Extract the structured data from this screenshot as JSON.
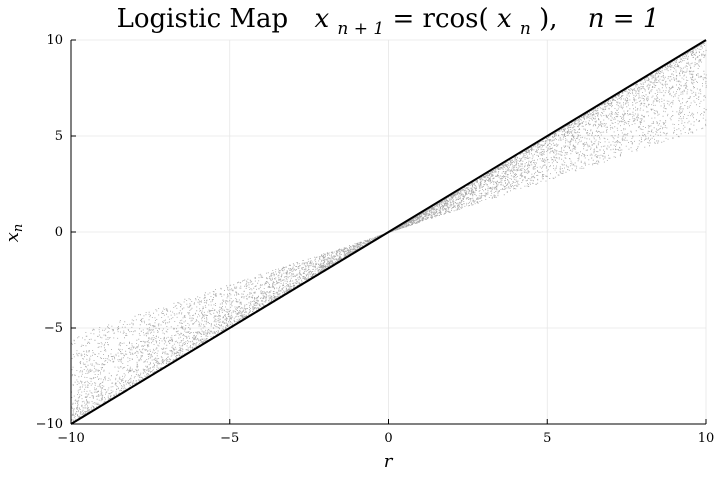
{
  "chart_data": {
    "type": "scatter",
    "title": "Logistic Map   x_{n+1} = rcos(x_n),   n = 1",
    "title_parts": {
      "lead": "Logistic Map",
      "x": "x",
      "sub_n1": "n + 1",
      "eq": " = rcos(",
      "x2": "x",
      "sub_n": "n",
      "close": "),",
      "n_eq": "n = 1"
    },
    "xlabel": "r",
    "ylabel_main": "x",
    "ylabel_sub": "n",
    "xlim": [
      -10,
      10
    ],
    "ylim": [
      -10,
      10
    ],
    "x_ticks": [
      -10,
      -5,
      0,
      5,
      10
    ],
    "x_tick_labels": [
      "−10",
      "−5",
      "0",
      "5",
      "10"
    ],
    "y_ticks": [
      -10,
      -5,
      0,
      5,
      10
    ],
    "y_tick_labels": [
      "−10",
      "−5",
      "0",
      "5",
      "10"
    ],
    "grid": true,
    "legend": "none",
    "marker_color": "#000000",
    "series": [
      {
        "relation": "x_n = r * cos(x0), x0 sampled uniformly in [-1, 1]",
        "x_range": [
          -10,
          10
        ],
        "upper_envelope_at_r10": 10,
        "lower_envelope_at_r10": 5.4,
        "upper_envelope_at_rneg10": -5.4,
        "lower_envelope_at_rneg10": -10
      }
    ]
  }
}
